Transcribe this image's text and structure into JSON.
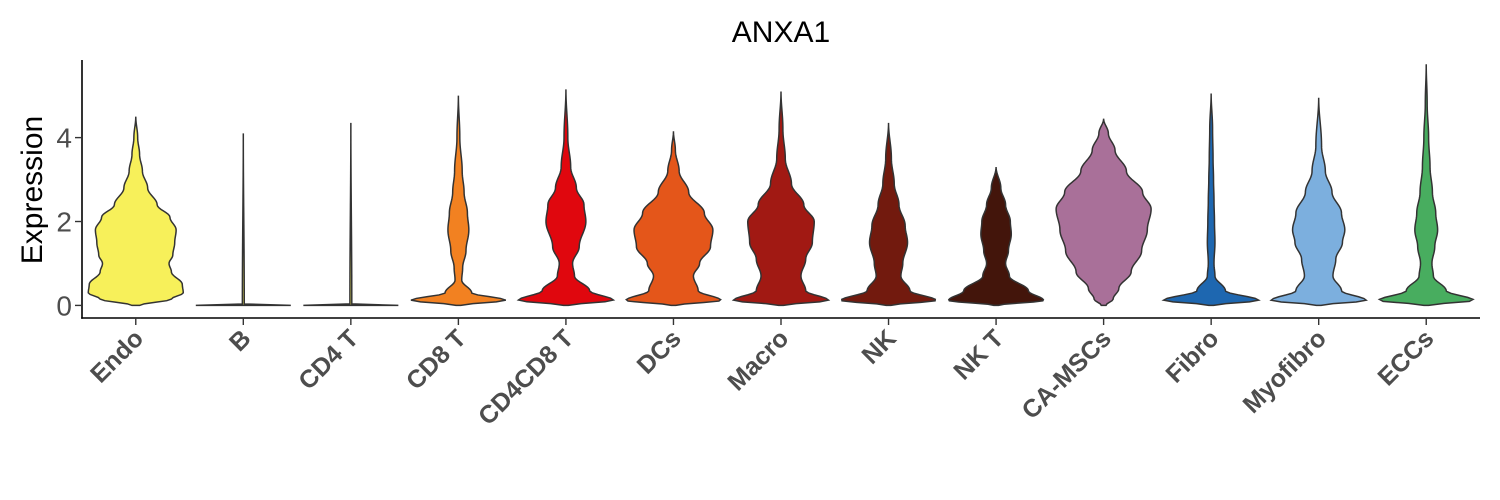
{
  "chart_data": {
    "type": "violin",
    "title": "ANXA1",
    "ylabel": "Expression",
    "xlabel": "",
    "ylim": [
      -0.3,
      5.85
    ],
    "yticks": [
      0,
      2,
      4
    ],
    "grid": false,
    "legend": "none",
    "categories": [
      "Endo",
      "B",
      "CD4 T",
      "CD8 T",
      "CD4CD8 T",
      "DCs",
      "Macro",
      "NK",
      "NK T",
      "CA-MSCs",
      "Fibro",
      "Myofibro",
      "ECCs"
    ],
    "colors": [
      "#F7F05A",
      "#F7F05A",
      "#F7F05A",
      "#F28121",
      "#E0070E",
      "#E4561A",
      "#A11913",
      "#721A0E",
      "#43150B",
      "#A97099",
      "#1E67B0",
      "#7CAFDE",
      "#48AD5F"
    ],
    "series": [
      {
        "max": 4.5,
        "profile": [
          [
            0,
            0.08
          ],
          [
            0.15,
            0.75
          ],
          [
            0.3,
            1.0
          ],
          [
            0.5,
            0.98
          ],
          [
            0.8,
            0.75
          ],
          [
            1.0,
            0.7
          ],
          [
            1.2,
            0.78
          ],
          [
            1.5,
            0.82
          ],
          [
            1.8,
            0.85
          ],
          [
            2.1,
            0.72
          ],
          [
            2.4,
            0.45
          ],
          [
            2.8,
            0.25
          ],
          [
            3.2,
            0.14
          ],
          [
            3.6,
            0.08
          ],
          [
            4.0,
            0.04
          ],
          [
            4.5,
            0
          ]
        ]
      },
      {
        "max": 4.1,
        "profile": [
          [
            0,
            1.0
          ],
          [
            0.02,
            0.02
          ],
          [
            4.1,
            0
          ]
        ]
      },
      {
        "max": 4.35,
        "profile": [
          [
            0,
            1.0
          ],
          [
            0.02,
            0.02
          ],
          [
            4.35,
            0
          ]
        ]
      },
      {
        "max": 5.0,
        "profile": [
          [
            0,
            0.05
          ],
          [
            0.12,
            1.0
          ],
          [
            0.3,
            0.28
          ],
          [
            0.6,
            0.07
          ],
          [
            0.9,
            0.09
          ],
          [
            1.3,
            0.16
          ],
          [
            1.8,
            0.22
          ],
          [
            2.2,
            0.19
          ],
          [
            2.7,
            0.12
          ],
          [
            3.2,
            0.08
          ],
          [
            4.0,
            0.03
          ],
          [
            5.0,
            0
          ]
        ]
      },
      {
        "max": 5.15,
        "profile": [
          [
            0,
            0.05
          ],
          [
            0.12,
            1.0
          ],
          [
            0.35,
            0.5
          ],
          [
            0.7,
            0.18
          ],
          [
            1.0,
            0.14
          ],
          [
            1.4,
            0.28
          ],
          [
            2.0,
            0.42
          ],
          [
            2.4,
            0.38
          ],
          [
            2.8,
            0.22
          ],
          [
            3.3,
            0.1
          ],
          [
            4.0,
            0.04
          ],
          [
            5.15,
            0
          ]
        ]
      },
      {
        "max": 4.15,
        "profile": [
          [
            0,
            0.05
          ],
          [
            0.12,
            1.0
          ],
          [
            0.35,
            0.52
          ],
          [
            0.7,
            0.42
          ],
          [
            1.0,
            0.55
          ],
          [
            1.4,
            0.78
          ],
          [
            1.8,
            0.83
          ],
          [
            2.2,
            0.65
          ],
          [
            2.7,
            0.32
          ],
          [
            3.2,
            0.12
          ],
          [
            3.7,
            0.04
          ],
          [
            4.15,
            0
          ]
        ]
      },
      {
        "max": 5.1,
        "profile": [
          [
            0,
            0.05
          ],
          [
            0.12,
            1.0
          ],
          [
            0.35,
            0.52
          ],
          [
            0.7,
            0.42
          ],
          [
            1.1,
            0.52
          ],
          [
            1.5,
            0.66
          ],
          [
            2.0,
            0.7
          ],
          [
            2.4,
            0.48
          ],
          [
            2.9,
            0.22
          ],
          [
            3.5,
            0.09
          ],
          [
            4.2,
            0.04
          ],
          [
            5.1,
            0
          ]
        ]
      },
      {
        "max": 4.35,
        "profile": [
          [
            0,
            0.05
          ],
          [
            0.12,
            1.0
          ],
          [
            0.35,
            0.45
          ],
          [
            0.7,
            0.26
          ],
          [
            1.0,
            0.3
          ],
          [
            1.5,
            0.4
          ],
          [
            1.9,
            0.35
          ],
          [
            2.4,
            0.22
          ],
          [
            2.9,
            0.12
          ],
          [
            3.5,
            0.06
          ],
          [
            4.35,
            0
          ]
        ]
      },
      {
        "max": 3.3,
        "profile": [
          [
            0,
            0.05
          ],
          [
            0.12,
            1.0
          ],
          [
            0.35,
            0.68
          ],
          [
            0.7,
            0.28
          ],
          [
            1.0,
            0.2
          ],
          [
            1.3,
            0.26
          ],
          [
            1.7,
            0.32
          ],
          [
            2.0,
            0.3
          ],
          [
            2.4,
            0.2
          ],
          [
            2.8,
            0.1
          ],
          [
            3.3,
            0
          ]
        ]
      },
      {
        "max": 4.45,
        "profile": [
          [
            0,
            0.05
          ],
          [
            0.15,
            0.2
          ],
          [
            0.4,
            0.32
          ],
          [
            0.8,
            0.58
          ],
          [
            1.3,
            0.8
          ],
          [
            1.8,
            0.92
          ],
          [
            2.3,
            1.0
          ],
          [
            2.7,
            0.82
          ],
          [
            3.2,
            0.48
          ],
          [
            3.7,
            0.24
          ],
          [
            4.1,
            0.1
          ],
          [
            4.45,
            0
          ]
        ]
      },
      {
        "max": 5.05,
        "profile": [
          [
            0,
            0.05
          ],
          [
            0.12,
            1.0
          ],
          [
            0.35,
            0.3
          ],
          [
            0.7,
            0.08
          ],
          [
            1.0,
            0.06
          ],
          [
            1.5,
            0.08
          ],
          [
            2.0,
            0.07
          ],
          [
            2.5,
            0.06
          ],
          [
            3.0,
            0.05
          ],
          [
            3.5,
            0.04
          ],
          [
            4.2,
            0.03
          ],
          [
            5.05,
            0
          ]
        ]
      },
      {
        "max": 4.95,
        "profile": [
          [
            0,
            0.05
          ],
          [
            0.12,
            1.0
          ],
          [
            0.35,
            0.48
          ],
          [
            0.7,
            0.3
          ],
          [
            1.1,
            0.36
          ],
          [
            1.5,
            0.5
          ],
          [
            1.8,
            0.55
          ],
          [
            2.2,
            0.48
          ],
          [
            2.7,
            0.28
          ],
          [
            3.2,
            0.14
          ],
          [
            3.8,
            0.06
          ],
          [
            4.95,
            0
          ]
        ]
      },
      {
        "max": 5.75,
        "profile": [
          [
            0,
            0.05
          ],
          [
            0.12,
            1.0
          ],
          [
            0.35,
            0.42
          ],
          [
            0.7,
            0.15
          ],
          [
            1.0,
            0.12
          ],
          [
            1.4,
            0.18
          ],
          [
            1.8,
            0.24
          ],
          [
            2.2,
            0.2
          ],
          [
            2.7,
            0.13
          ],
          [
            3.3,
            0.08
          ],
          [
            4.0,
            0.05
          ],
          [
            4.8,
            0.02
          ],
          [
            5.75,
            0
          ]
        ]
      }
    ]
  }
}
